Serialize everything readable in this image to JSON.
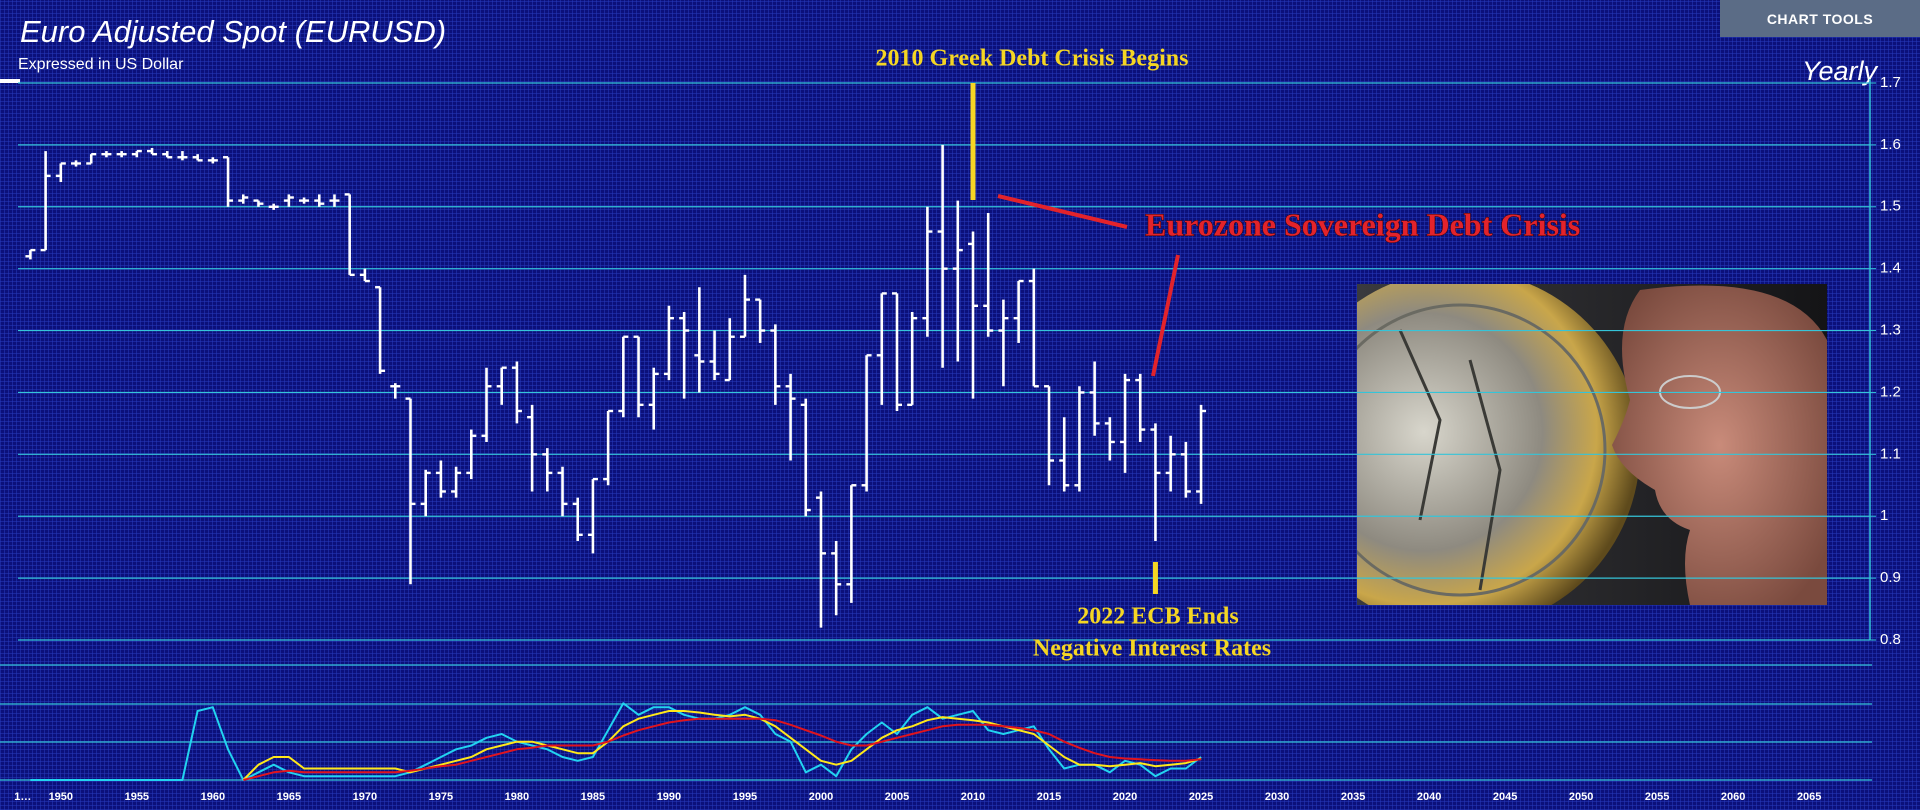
{
  "toolbar": {
    "button": "CHART TOOLS"
  },
  "chart_data": [
    {
      "type": "ohlc",
      "title": "Euro Adjusted Spot (EURUSD)",
      "subtitle": "Expressed in US Dollar",
      "period": "Yearly",
      "x": [
        1948,
        1949,
        1950,
        1951,
        1952,
        1953,
        1954,
        1955,
        1956,
        1957,
        1958,
        1959,
        1960,
        1961,
        1962,
        1963,
        1964,
        1965,
        1966,
        1967,
        1968,
        1969,
        1970,
        1971,
        1972,
        1973,
        1974,
        1975,
        1976,
        1977,
        1978,
        1979,
        1980,
        1981,
        1982,
        1983,
        1984,
        1985,
        1986,
        1987,
        1988,
        1989,
        1990,
        1991,
        1992,
        1993,
        1994,
        1995,
        1996,
        1997,
        1998,
        1999,
        2000,
        2001,
        2002,
        2003,
        2004,
        2005,
        2006,
        2007,
        2008,
        2009,
        2010,
        2011,
        2012,
        2013,
        2014,
        2015,
        2016,
        2017,
        2018,
        2019,
        2020,
        2021,
        2022,
        2023,
        2024,
        2025
      ],
      "open": [
        1.42,
        1.43,
        1.55,
        1.57,
        1.57,
        1.585,
        1.585,
        1.585,
        1.59,
        1.585,
        1.58,
        1.58,
        1.575,
        1.58,
        1.51,
        1.51,
        1.5,
        1.51,
        1.51,
        1.51,
        1.51,
        1.52,
        1.39,
        1.37,
        1.21,
        1.19,
        1.02,
        1.07,
        1.04,
        1.07,
        1.13,
        1.21,
        1.24,
        1.16,
        1.1,
        1.07,
        1.02,
        0.97,
        1.06,
        1.17,
        1.29,
        1.18,
        1.23,
        1.32,
        1.26,
        1.25,
        1.22,
        1.29,
        1.35,
        1.3,
        1.21,
        1.18,
        1.03,
        0.94,
        0.89,
        1.05,
        1.26,
        1.36,
        1.18,
        1.32,
        1.46,
        1.4,
        1.44,
        1.34,
        1.3,
        1.32,
        1.38,
        1.21,
        1.09,
        1.05,
        1.2,
        1.15,
        1.12,
        1.22,
        1.14,
        1.07,
        1.1,
        1.04
      ],
      "high": [
        1.43,
        1.59,
        1.57,
        1.575,
        1.585,
        1.59,
        1.59,
        1.59,
        1.595,
        1.59,
        1.59,
        1.585,
        1.58,
        1.58,
        1.52,
        1.51,
        1.505,
        1.52,
        1.515,
        1.52,
        1.52,
        1.52,
        1.4,
        1.37,
        1.215,
        1.19,
        1.075,
        1.09,
        1.08,
        1.14,
        1.24,
        1.24,
        1.25,
        1.18,
        1.11,
        1.08,
        1.03,
        1.06,
        1.17,
        1.29,
        1.29,
        1.24,
        1.34,
        1.33,
        1.37,
        1.3,
        1.32,
        1.39,
        1.35,
        1.31,
        1.23,
        1.19,
        1.04,
        0.96,
        1.05,
        1.26,
        1.36,
        1.36,
        1.33,
        1.5,
        1.6,
        1.51,
        1.46,
        1.49,
        1.35,
        1.38,
        1.4,
        1.21,
        1.16,
        1.21,
        1.25,
        1.16,
        1.23,
        1.23,
        1.15,
        1.13,
        1.12,
        1.18
      ],
      "low": [
        1.415,
        1.43,
        1.54,
        1.565,
        1.57,
        1.58,
        1.58,
        1.58,
        1.585,
        1.58,
        1.575,
        1.575,
        1.57,
        1.5,
        1.505,
        1.5,
        1.495,
        1.5,
        1.505,
        1.5,
        1.5,
        1.39,
        1.38,
        1.23,
        1.19,
        0.89,
        1.0,
        1.03,
        1.03,
        1.06,
        1.12,
        1.18,
        1.15,
        1.04,
        1.04,
        1.0,
        0.96,
        0.94,
        1.05,
        1.16,
        1.16,
        1.14,
        1.22,
        1.19,
        1.2,
        1.22,
        1.22,
        1.29,
        1.28,
        1.18,
        1.09,
        1.0,
        0.82,
        0.84,
        0.86,
        1.04,
        1.18,
        1.17,
        1.18,
        1.29,
        1.24,
        1.25,
        1.19,
        1.29,
        1.21,
        1.28,
        1.21,
        1.05,
        1.04,
        1.04,
        1.13,
        1.09,
        1.07,
        1.12,
        0.96,
        1.04,
        1.03,
        1.02
      ],
      "close": [
        1.43,
        1.55,
        1.57,
        1.57,
        1.585,
        1.585,
        1.585,
        1.59,
        1.585,
        1.58,
        1.58,
        1.575,
        1.575,
        1.51,
        1.515,
        1.505,
        1.5,
        1.515,
        1.51,
        1.505,
        1.51,
        1.39,
        1.38,
        1.235,
        1.21,
        1.02,
        1.07,
        1.04,
        1.07,
        1.13,
        1.21,
        1.24,
        1.17,
        1.1,
        1.07,
        1.02,
        0.97,
        1.06,
        1.17,
        1.29,
        1.18,
        1.23,
        1.32,
        1.3,
        1.25,
        1.23,
        1.29,
        1.35,
        1.3,
        1.21,
        1.19,
        1.01,
        0.94,
        0.89,
        1.05,
        1.26,
        1.36,
        1.18,
        1.32,
        1.46,
        1.4,
        1.43,
        1.34,
        1.3,
        1.32,
        1.38,
        1.21,
        1.09,
        1.05,
        1.2,
        1.15,
        1.12,
        1.22,
        1.14,
        1.07,
        1.1,
        1.04,
        1.17
      ],
      "xlim": [
        1946,
        2069
      ],
      "ylim": [
        0.8,
        1.7
      ],
      "yticks": [
        0.8,
        0.9,
        1,
        1.1,
        1.2,
        1.3,
        1.4,
        1.5,
        1.6,
        1.7
      ],
      "xticks": [
        {
          "value": 1947.5,
          "label": "1…"
        },
        1950,
        1955,
        1960,
        1965,
        1970,
        1975,
        1980,
        1985,
        1990,
        1995,
        2000,
        2005,
        2010,
        2015,
        2020,
        2025,
        2030,
        2035,
        2040,
        2045,
        2050,
        2055,
        2060,
        2065
      ],
      "color": "#ffffff",
      "grid": true,
      "annotations": [
        {
          "text": "2010 Greek Debt Crisis Begins",
          "x": 2010,
          "color": "#f5d623"
        },
        {
          "text": "Eurozone Sovereign Debt Crisis",
          "color": "#e3232b"
        },
        {
          "text": "2022 ECB Ends",
          "x": 2022,
          "color": "#f5d623"
        },
        {
          "text": "Negative Interest Rates",
          "color": "#f5d623"
        }
      ]
    },
    {
      "type": "line",
      "x": [
        1948,
        1949,
        1950,
        1951,
        1952,
        1953,
        1954,
        1955,
        1956,
        1957,
        1958,
        1959,
        1960,
        1961,
        1962,
        1963,
        1964,
        1965,
        1966,
        1967,
        1968,
        1969,
        1970,
        1971,
        1972,
        1973,
        1974,
        1975,
        1976,
        1977,
        1978,
        1979,
        1980,
        1981,
        1982,
        1983,
        1984,
        1985,
        1986,
        1987,
        1988,
        1989,
        1990,
        1991,
        1992,
        1993,
        1994,
        1995,
        1996,
        1997,
        1998,
        1999,
        2000,
        2001,
        2002,
        2003,
        2004,
        2005,
        2006,
        2007,
        2008,
        2009,
        2010,
        2011,
        2012,
        2013,
        2014,
        2015,
        2016,
        2017,
        2018,
        2019,
        2020,
        2021,
        2022,
        2023,
        2024,
        2025
      ],
      "ylim": [
        0,
        1.5
      ],
      "series": [
        {
          "color": "#22d3f0",
          "values": [
            0,
            0,
            0,
            0,
            0,
            0,
            0,
            0,
            0,
            0,
            0,
            0.9,
            0.95,
            0.4,
            0,
            0.1,
            0.2,
            0.1,
            0.05,
            0.05,
            0.05,
            0.05,
            0.05,
            0.05,
            0.05,
            0.1,
            0.2,
            0.3,
            0.4,
            0.45,
            0.55,
            0.6,
            0.5,
            0.45,
            0.4,
            0.3,
            0.25,
            0.3,
            0.65,
            1,
            0.85,
            0.95,
            0.95,
            0.85,
            0.8,
            0.8,
            0.85,
            0.95,
            0.85,
            0.6,
            0.5,
            0.1,
            0.2,
            0.05,
            0.4,
            0.6,
            0.75,
            0.6,
            0.85,
            0.95,
            0.8,
            0.85,
            0.9,
            0.65,
            0.6,
            0.65,
            0.7,
            0.4,
            0.15,
            0.2,
            0.2,
            0.1,
            0.25,
            0.2,
            0.05,
            0.15,
            0.15,
            0.3
          ]
        },
        {
          "color": "#ffe81a",
          "values": [
            null,
            null,
            null,
            null,
            null,
            null,
            null,
            null,
            null,
            null,
            null,
            null,
            null,
            null,
            0,
            0.2,
            0.3,
            0.3,
            0.15,
            0.15,
            0.15,
            0.15,
            0.15,
            0.15,
            0.15,
            0.1,
            0.15,
            0.2,
            0.25,
            0.3,
            0.4,
            0.45,
            0.5,
            0.5,
            0.45,
            0.4,
            0.35,
            0.35,
            0.5,
            0.7,
            0.8,
            0.85,
            0.9,
            0.9,
            0.88,
            0.85,
            0.83,
            0.85,
            0.8,
            0.7,
            0.55,
            0.4,
            0.25,
            0.2,
            0.25,
            0.4,
            0.55,
            0.65,
            0.7,
            0.78,
            0.82,
            0.8,
            0.78,
            0.75,
            0.7,
            0.65,
            0.6,
            0.45,
            0.3,
            0.2,
            0.2,
            0.18,
            0.2,
            0.22,
            0.18,
            0.2,
            0.22,
            0.28
          ]
        },
        {
          "color": "#e0141e",
          "values": [
            null,
            null,
            null,
            null,
            null,
            null,
            null,
            null,
            null,
            null,
            null,
            null,
            null,
            null,
            0,
            0.05,
            0.1,
            0.12,
            0.1,
            0.1,
            0.1,
            0.1,
            0.1,
            0.1,
            0.1,
            0.12,
            0.15,
            0.18,
            0.2,
            0.25,
            0.3,
            0.35,
            0.4,
            0.42,
            0.45,
            0.45,
            0.45,
            0.45,
            0.5,
            0.58,
            0.65,
            0.7,
            0.75,
            0.78,
            0.8,
            0.8,
            0.8,
            0.8,
            0.8,
            0.78,
            0.72,
            0.65,
            0.58,
            0.5,
            0.45,
            0.45,
            0.5,
            0.55,
            0.6,
            0.65,
            0.7,
            0.72,
            0.72,
            0.72,
            0.7,
            0.68,
            0.65,
            0.6,
            0.5,
            0.42,
            0.35,
            0.3,
            0.28,
            0.27,
            0.26,
            0.25,
            0.25,
            0.27
          ]
        }
      ]
    }
  ]
}
